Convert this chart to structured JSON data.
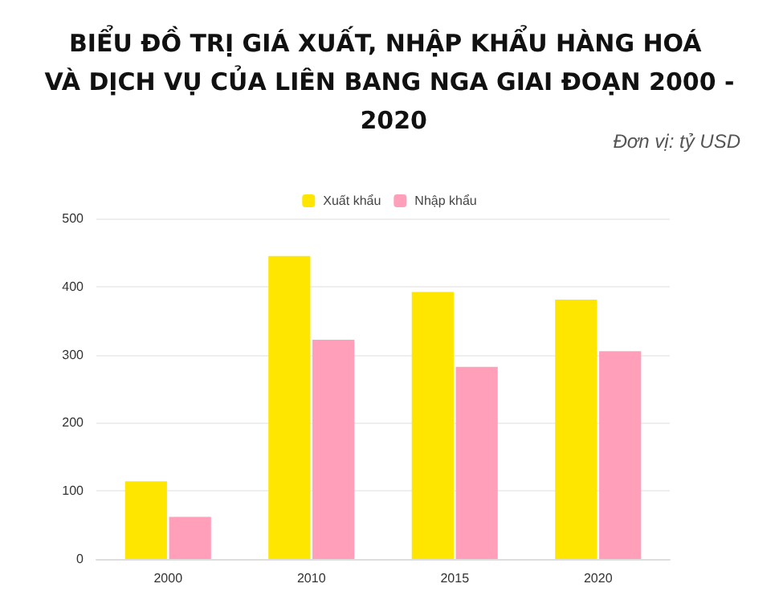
{
  "chart_data": {
    "type": "bar",
    "title": "BIỂU ĐỒ TRỊ GIÁ XUẤT, NHẬP KHẨU HÀNG HOÁ VÀ DỊCH VỤ CỦA LIÊN BANG NGA GIAI ĐOẠN 2000 - 2020",
    "annotations": [
      "Đơn vị: tỷ USD"
    ],
    "categories": [
      "2000",
      "2010",
      "2015",
      "2020"
    ],
    "series": [
      {
        "name": "Xuất khẩu",
        "color": "#ffe600",
        "values": [
          114,
          445,
          392,
          381
        ]
      },
      {
        "name": "Nhập khẩu",
        "color": "#ff9fba",
        "values": [
          62,
          322,
          282,
          305
        ]
      }
    ],
    "ylim": [
      0,
      500
    ],
    "yticks": [
      0,
      100,
      200,
      300,
      400,
      500
    ],
    "grid": "y",
    "legend": "top"
  }
}
